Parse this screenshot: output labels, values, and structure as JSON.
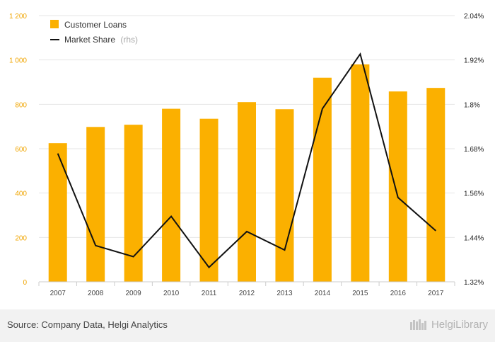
{
  "chart_data": {
    "type": "bar+line",
    "categories": [
      "2007",
      "2008",
      "2009",
      "2010",
      "2011",
      "2012",
      "2013",
      "2014",
      "2015",
      "2016",
      "2017"
    ],
    "series": [
      {
        "name": "Customer Loans",
        "type": "bar",
        "axis": "left",
        "color": "#fbb000",
        "values": [
          625,
          698,
          708,
          780,
          735,
          810,
          778,
          920,
          980,
          858,
          874
        ]
      },
      {
        "name": "Market Share",
        "name_suffix": "(rhs)",
        "type": "line",
        "axis": "right",
        "color": "#111111",
        "values": [
          1.667,
          1.418,
          1.388,
          1.497,
          1.359,
          1.456,
          1.406,
          1.788,
          1.936,
          1.548,
          1.458
        ]
      }
    ],
    "left_axis": {
      "ylim": [
        0,
        1200
      ],
      "ticks": [
        0,
        200,
        400,
        600,
        800,
        1000,
        1200
      ],
      "tick_labels": [
        "0",
        "200",
        "400",
        "600",
        "800",
        "1 000",
        "1 200"
      ],
      "color": "#f0a500"
    },
    "right_axis": {
      "ylim": [
        1.32,
        2.04
      ],
      "ticks": [
        1.32,
        1.44,
        1.56,
        1.68,
        1.8,
        1.92,
        2.04
      ],
      "tick_labels": [
        "1.32%",
        "1.44%",
        "1.56%",
        "1.68%",
        "1.8%",
        "1.92%",
        "2.04%"
      ]
    },
    "grid": "horizontal",
    "legend_position": "top-left"
  },
  "footer": {
    "source": "Source: Company Data, Helgi Analytics",
    "logo_text": "HelgiLibrary"
  }
}
